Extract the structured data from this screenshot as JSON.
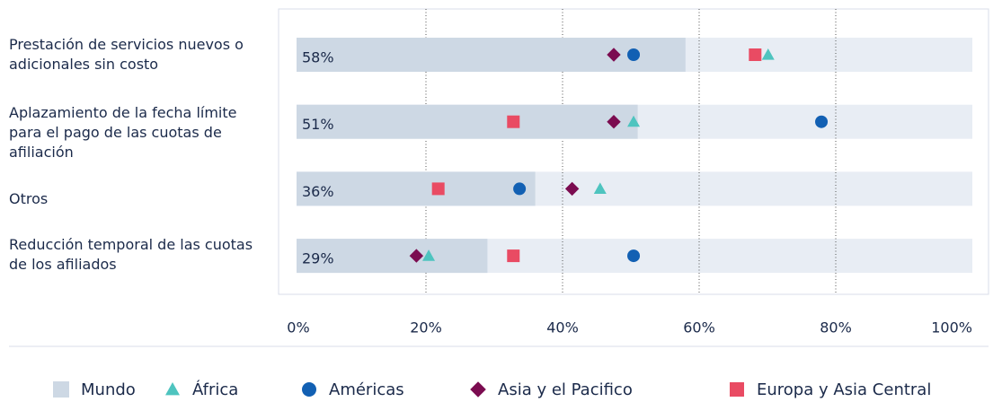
{
  "chart_data": {
    "type": "bar",
    "categories": [
      "Prestación de servicios nuevos o adicionales sin costo",
      "Aplazamiento de la fecha límite para el pago de las cuotas de afiliación",
      "Otros",
      "Reducción temporal de las cuotas de los afiliados"
    ],
    "xlim": [
      0,
      100
    ],
    "xticks": [
      {
        "value": 0,
        "label": "0%"
      },
      {
        "value": 20,
        "label": "20%"
      },
      {
        "value": 40,
        "label": "40%"
      },
      {
        "value": 60,
        "label": "60%"
      },
      {
        "value": 80,
        "label": "80%"
      },
      {
        "value": 100,
        "label": "100%"
      }
    ],
    "grid": true,
    "legend": "bottom",
    "series": [
      {
        "name": "Mundo",
        "color": "#cdd8e4",
        "marker": "bar",
        "values": [
          58,
          51,
          36,
          29
        ],
        "value_labels": [
          "58%",
          "51%",
          "36%",
          "29%"
        ]
      },
      {
        "name": "África",
        "color": "#4ec4bf",
        "marker": "triangle",
        "values": [
          70.1,
          50.4,
          45.5,
          20.4
        ]
      },
      {
        "name": "Américas",
        "color": "#1260b3",
        "marker": "circle",
        "values": [
          50.4,
          77.9,
          33.7,
          50.4
        ]
      },
      {
        "name": "Asia y el Pacifico",
        "color": "#7b0c50",
        "marker": "diamond",
        "values": [
          47.5,
          47.5,
          41.4,
          18.6
        ]
      },
      {
        "name": "Europa y Asia Central",
        "color": "#e94b63",
        "marker": "square",
        "values": [
          68.2,
          32.8,
          21.8,
          32.8
        ]
      }
    ]
  }
}
